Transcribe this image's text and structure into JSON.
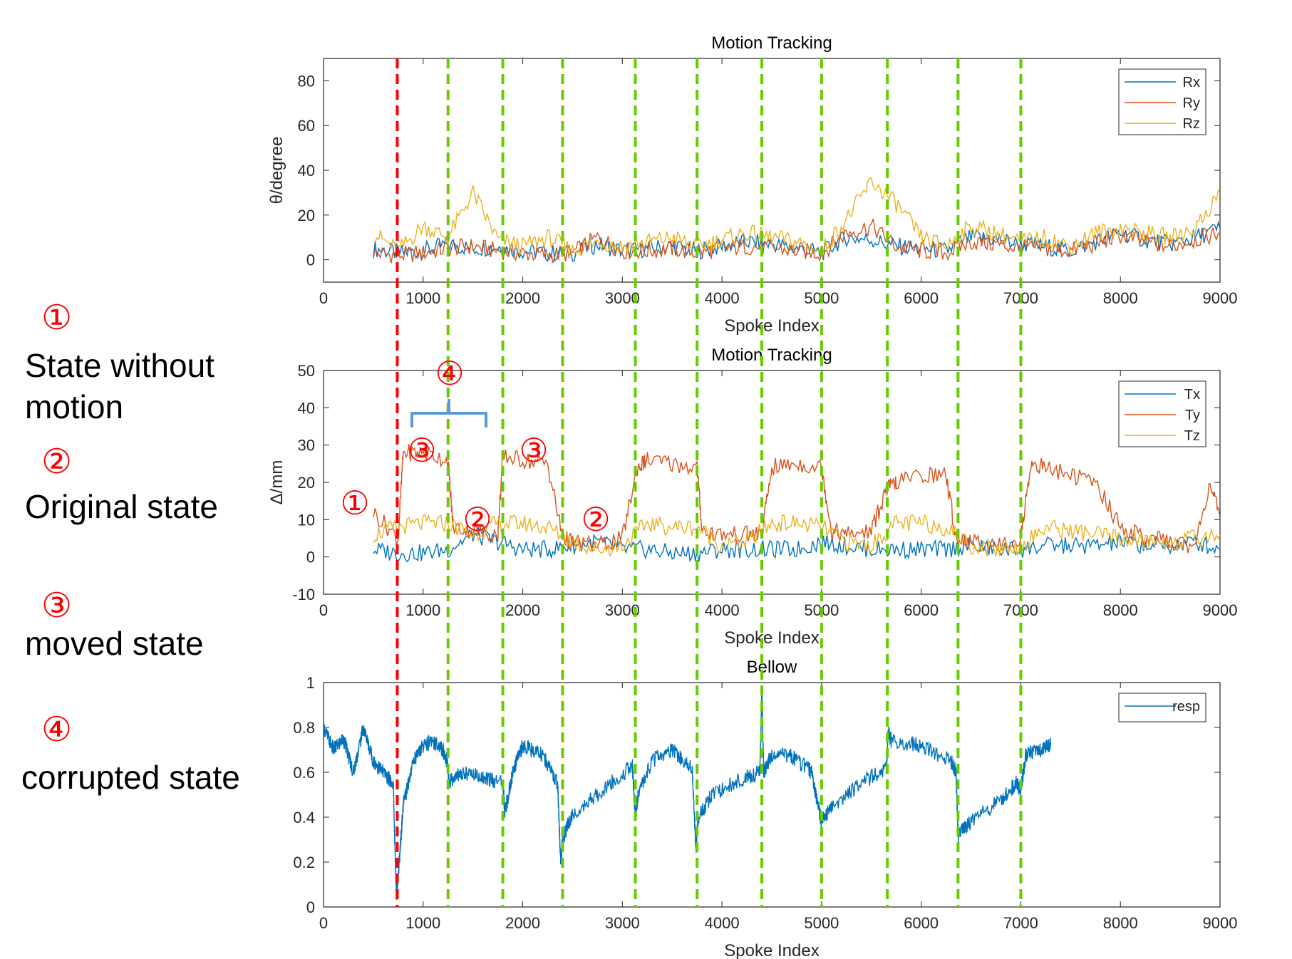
{
  "legend_side": {
    "items": [
      {
        "marker": "①",
        "text": "State without\nmotion"
      },
      {
        "marker": "②",
        "text": "Original state"
      },
      {
        "marker": "③",
        "text": "moved state"
      },
      {
        "marker": "④",
        "text": "corrupted state"
      }
    ]
  },
  "annotations": {
    "one": "①",
    "two": "②",
    "three": "③",
    "four": "④"
  },
  "colors": {
    "blue": "#0072BD",
    "orange": "#D95319",
    "yellow": "#EDB120",
    "red_line": "#ff0000",
    "green_line": "#66cc00",
    "bracket": "#5b9bd5"
  },
  "chart_data": [
    {
      "type": "line",
      "title": "Motion Tracking",
      "xlabel": "Spoke Index",
      "ylabel": "θ/degree",
      "xlim": [
        0,
        9000
      ],
      "ylim": [
        -10,
        90
      ],
      "xticks": [
        0,
        1000,
        2000,
        3000,
        4000,
        5000,
        6000,
        7000,
        8000,
        9000
      ],
      "yticks": [
        0,
        20,
        40,
        60,
        80
      ],
      "legend": "top-right",
      "series": [
        {
          "name": "Rx",
          "x": [
            500,
            750,
            1000,
            1250,
            1500,
            1750,
            2000,
            2250,
            2500,
            2750,
            3000,
            3250,
            3500,
            3750,
            4000,
            4250,
            4500,
            4750,
            5000,
            5250,
            5500,
            5750,
            6000,
            6250,
            6500,
            6750,
            7000,
            7250,
            7500,
            7750,
            8000,
            8250,
            8500,
            8750,
            9000
          ],
          "values": [
            5,
            3,
            4,
            7,
            5,
            6,
            4,
            3,
            3,
            7,
            4,
            5,
            6,
            4,
            6,
            8,
            7,
            5,
            3,
            10,
            9,
            6,
            5,
            4,
            10,
            9,
            7,
            6,
            4,
            8,
            12,
            9,
            7,
            10,
            14
          ]
        },
        {
          "name": "Ry",
          "x": [
            500,
            750,
            1000,
            1250,
            1500,
            1750,
            2000,
            2250,
            2500,
            2750,
            3000,
            3250,
            3500,
            3750,
            4000,
            4250,
            4500,
            4750,
            5000,
            5250,
            5500,
            5750,
            6000,
            6250,
            6500,
            6750,
            7000,
            7250,
            7500,
            7750,
            8000,
            8250,
            8500,
            8750,
            9000
          ],
          "values": [
            3,
            2,
            3,
            5,
            6,
            4,
            3,
            2,
            3,
            10,
            4,
            4,
            5,
            3,
            5,
            6,
            5,
            4,
            3,
            12,
            15,
            6,
            4,
            3,
            8,
            7,
            5,
            5,
            4,
            7,
            11,
            8,
            6,
            9,
            12
          ]
        },
        {
          "name": "Rz",
          "x": [
            500,
            750,
            1000,
            1250,
            1500,
            1750,
            2000,
            2250,
            2500,
            2750,
            3000,
            3250,
            3500,
            3750,
            4000,
            4250,
            4500,
            4750,
            5000,
            5250,
            5500,
            5750,
            6000,
            6250,
            6500,
            6750,
            7000,
            7250,
            7500,
            7750,
            8000,
            8250,
            8500,
            8750,
            9000
          ],
          "values": [
            12,
            4,
            15,
            10,
            30,
            9,
            6,
            10,
            4,
            8,
            6,
            8,
            10,
            6,
            9,
            12,
            10,
            8,
            4,
            18,
            35,
            25,
            10,
            6,
            15,
            12,
            8,
            10,
            6,
            12,
            14,
            12,
            10,
            14,
            30
          ]
        }
      ]
    },
    {
      "type": "line",
      "title": "Motion Tracking",
      "xlabel": "Spoke Index",
      "ylabel": "Δ/mm",
      "xlim": [
        0,
        9000
      ],
      "ylim": [
        -10,
        50
      ],
      "xticks": [
        0,
        1000,
        2000,
        3000,
        4000,
        5000,
        6000,
        7000,
        8000,
        9000
      ],
      "yticks": [
        -10,
        0,
        10,
        20,
        30,
        40,
        50
      ],
      "legend": "top-right",
      "series": [
        {
          "name": "Tx",
          "x": [
            500,
            750,
            1000,
            1250,
            1500,
            1750,
            2000,
            2250,
            2500,
            2750,
            3000,
            3250,
            3500,
            3750,
            4000,
            4250,
            4500,
            4750,
            5000,
            5250,
            5500,
            5750,
            6000,
            6250,
            6500,
            6750,
            7000,
            7250,
            7500,
            7750,
            8000,
            8250,
            8500,
            8750,
            9000
          ],
          "values": [
            2,
            1,
            1,
            2,
            6,
            4,
            2,
            2,
            3,
            4,
            2,
            2,
            1,
            1,
            2,
            2,
            2,
            2,
            4,
            3,
            2,
            2,
            2,
            2,
            3,
            2,
            2,
            3,
            3,
            3,
            4,
            3,
            3,
            4,
            2
          ]
        },
        {
          "name": "Ty",
          "x": [
            500,
            750,
            800,
            1000,
            1250,
            1300,
            1500,
            1750,
            1800,
            2000,
            2250,
            2400,
            2500,
            2750,
            3000,
            3150,
            3250,
            3500,
            3750,
            3800,
            4000,
            4250,
            4400,
            4500,
            4750,
            5000,
            5100,
            5250,
            5500,
            5650,
            5750,
            6000,
            6250,
            6350,
            6500,
            6750,
            7000,
            7100,
            7250,
            7500,
            7750,
            8000,
            8250,
            8500,
            8750,
            8900,
            9000
          ],
          "values": [
            12,
            5,
            28,
            28,
            26,
            8,
            7,
            6,
            27,
            26,
            25,
            5,
            4,
            3,
            5,
            24,
            26,
            25,
            24,
            7,
            6,
            6,
            6,
            24,
            25,
            24,
            7,
            6,
            7,
            18,
            20,
            22,
            22,
            5,
            4,
            3,
            5,
            25,
            24,
            22,
            20,
            8,
            5,
            4,
            3,
            20,
            10
          ]
        },
        {
          "name": "Tz",
          "x": [
            500,
            750,
            1000,
            1250,
            1500,
            1750,
            2000,
            2250,
            2500,
            2750,
            3000,
            3250,
            3500,
            3750,
            4000,
            4250,
            4500,
            4750,
            5000,
            5250,
            5500,
            5750,
            6000,
            6250,
            6500,
            6750,
            7000,
            7250,
            7500,
            7750,
            8000,
            8250,
            8500,
            8750,
            9000
          ],
          "values": [
            6,
            8,
            9,
            9,
            6,
            9,
            9,
            8,
            4,
            2,
            3,
            9,
            8,
            8,
            3,
            4,
            9,
            9,
            8,
            4,
            3,
            9,
            9,
            8,
            3,
            2,
            3,
            8,
            7,
            6,
            5,
            4,
            4,
            5,
            6
          ]
        }
      ]
    },
    {
      "type": "line",
      "title": "Bellow",
      "xlabel": "Spoke Index",
      "ylabel": "",
      "xlim": [
        0,
        9000
      ],
      "ylim": [
        0,
        1
      ],
      "xticks": [
        0,
        1000,
        2000,
        3000,
        4000,
        5000,
        6000,
        7000,
        8000,
        9000
      ],
      "yticks": [
        0,
        0.2,
        0.4,
        0.6,
        0.8,
        1
      ],
      "legend": "top-right",
      "series": [
        {
          "name": "resp",
          "x": [
            0,
            100,
            200,
            300,
            400,
            500,
            600,
            700,
            730,
            760,
            800,
            900,
            1000,
            1100,
            1200,
            1240,
            1260,
            1400,
            1600,
            1800,
            1820,
            1900,
            2000,
            2200,
            2350,
            2380,
            2400,
            2500,
            2800,
            3100,
            3130,
            3160,
            3300,
            3500,
            3700,
            3740,
            3760,
            3900,
            4200,
            4380,
            4400,
            4420,
            4500,
            4700,
            4900,
            4980,
            5000,
            5100,
            5400,
            5650,
            5670,
            5700,
            6000,
            6300,
            6350,
            6370,
            6500,
            6800,
            6950,
            7000,
            7050,
            7200,
            7300
          ],
          "values": [
            0.8,
            0.7,
            0.75,
            0.6,
            0.8,
            0.65,
            0.6,
            0.55,
            0.05,
            0.2,
            0.45,
            0.65,
            0.72,
            0.74,
            0.7,
            0.65,
            0.56,
            0.6,
            0.58,
            0.55,
            0.42,
            0.6,
            0.72,
            0.68,
            0.55,
            0.2,
            0.3,
            0.42,
            0.52,
            0.63,
            0.4,
            0.5,
            0.65,
            0.7,
            0.62,
            0.25,
            0.4,
            0.5,
            0.57,
            0.6,
            0.95,
            0.6,
            0.68,
            0.67,
            0.6,
            0.42,
            0.38,
            0.45,
            0.55,
            0.62,
            0.78,
            0.74,
            0.72,
            0.65,
            0.6,
            0.32,
            0.38,
            0.48,
            0.55,
            0.52,
            0.68,
            0.7,
            0.72
          ]
        }
      ]
    }
  ],
  "vlines": {
    "red": 740,
    "green": [
      1250,
      1800,
      2400,
      3130,
      3750,
      4400,
      5000,
      5660,
      6370,
      7000
    ]
  }
}
